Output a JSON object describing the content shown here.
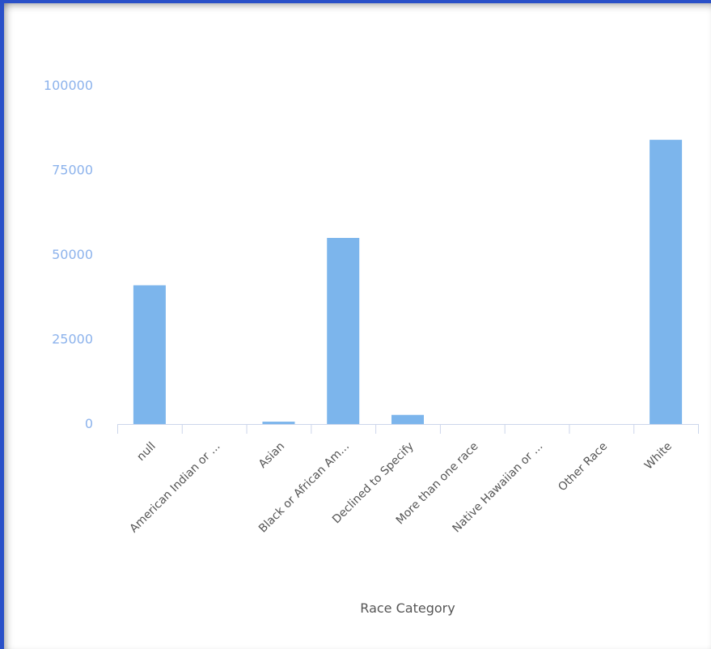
{
  "chart_data": {
    "type": "bar",
    "categories": [
      "null",
      "American Indian or ...",
      "Asian",
      "Black or African Am...",
      "Declined to Specify",
      "More than one race",
      "Native Hawaiian or ...",
      "Other Race",
      "White"
    ],
    "values": [
      41000,
      0,
      700,
      55000,
      2700,
      0,
      0,
      0,
      84000
    ],
    "xlabel": "Race Category",
    "ylabel": "",
    "ylim": [
      0,
      110000
    ],
    "yticks": [
      0,
      25000,
      50000,
      75000,
      100000
    ],
    "grid": false,
    "colors": {
      "bar": "#7cb5ec",
      "axis": "#ccd6eb",
      "ytick": "#8db3ec",
      "frame": "#2a50c8"
    }
  }
}
